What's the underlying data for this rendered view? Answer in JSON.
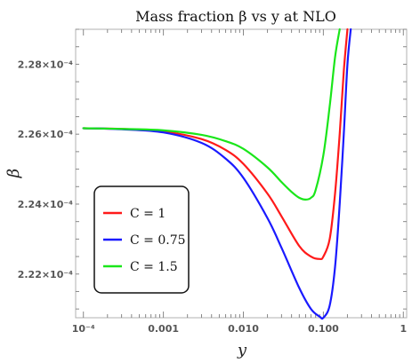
{
  "chart_data": {
    "type": "line",
    "title": "Mass fraction β vs y at NLO",
    "xlabel": "y",
    "ylabel": "β",
    "xscale": "log",
    "xlim": [
      8e-05,
      1.1
    ],
    "ylim": [
      0.00022075,
      0.000229
    ],
    "xticks": [
      {
        "value": 0.0001,
        "label": "10⁻⁴"
      },
      {
        "value": 0.001,
        "label": "0.001"
      },
      {
        "value": 0.01,
        "label": "0.010"
      },
      {
        "value": 0.1,
        "label": "0.100"
      },
      {
        "value": 1,
        "label": "1"
      }
    ],
    "yticks": [
      {
        "value": 0.000222,
        "label": "2.22×10⁻⁴"
      },
      {
        "value": 0.000224,
        "label": "2.24×10⁻⁴"
      },
      {
        "value": 0.000226,
        "label": "2.26×10⁻⁴"
      },
      {
        "value": 0.000228,
        "label": "2.28×10⁻⁴"
      }
    ],
    "legend_position": "lower-left",
    "series": [
      {
        "name": "C = 1",
        "color": "#ff1a1a",
        "x": [
          0.0001,
          0.0003,
          0.001,
          0.003,
          0.006,
          0.01,
          0.02,
          0.03,
          0.05,
          0.07,
          0.09,
          0.1,
          0.12,
          0.14,
          0.16,
          0.18,
          0.2
        ],
        "y": [
          0.00022617,
          0.00022615,
          0.00022608,
          0.00022586,
          0.00022555,
          0.00022515,
          0.0002243,
          0.00022365,
          0.0002228,
          0.0002225,
          0.00022243,
          0.0002225,
          0.000223,
          0.0002243,
          0.000226,
          0.0002278,
          0.000229
        ]
      },
      {
        "name": "C = 0.75",
        "color": "#1a1aff",
        "x": [
          0.0001,
          0.0003,
          0.001,
          0.003,
          0.006,
          0.01,
          0.02,
          0.03,
          0.05,
          0.07,
          0.09,
          0.1,
          0.12,
          0.14,
          0.16,
          0.18,
          0.2,
          0.22
        ],
        "y": [
          0.00022617,
          0.00022614,
          0.00022605,
          0.00022575,
          0.0002253,
          0.00022475,
          0.0002236,
          0.00022275,
          0.0002216,
          0.000221,
          0.00022078,
          0.00022075,
          0.0002211,
          0.0002222,
          0.000224,
          0.000226,
          0.000228,
          0.000229
        ]
      },
      {
        "name": "C = 1.5",
        "color": "#1ae61a",
        "x": [
          0.0001,
          0.0003,
          0.001,
          0.003,
          0.006,
          0.01,
          0.02,
          0.03,
          0.04,
          0.05,
          0.06,
          0.07,
          0.08,
          0.1,
          0.12,
          0.14,
          0.16
        ],
        "y": [
          0.00022617,
          0.00022615,
          0.00022611,
          0.00022598,
          0.0002258,
          0.00022558,
          0.00022505,
          0.00022463,
          0.00022435,
          0.00022418,
          0.00022413,
          0.00022418,
          0.0002244,
          0.0002254,
          0.0002268,
          0.0002282,
          0.000229
        ]
      }
    ]
  }
}
